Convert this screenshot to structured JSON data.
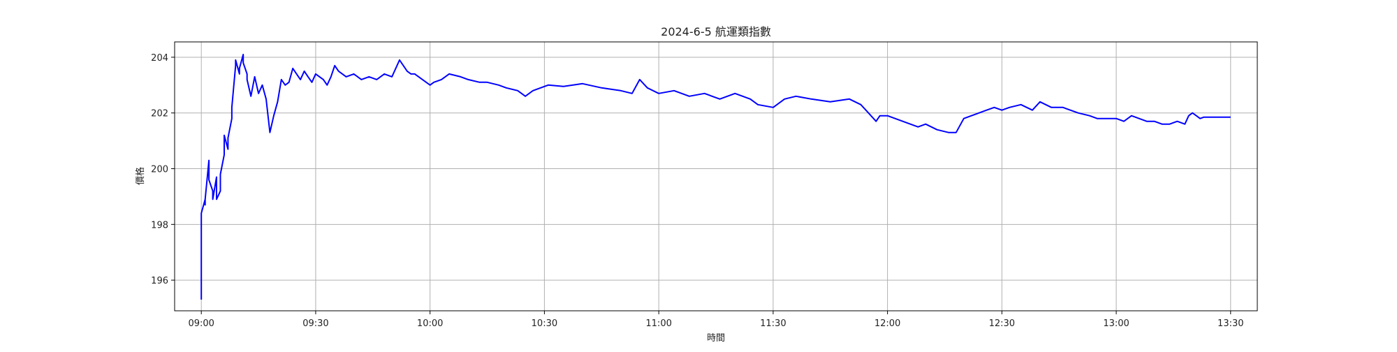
{
  "chart_data": {
    "type": "line",
    "title": "2024-6-5 航運類指數",
    "xlabel": "時間",
    "ylabel": "價格",
    "grid": true,
    "legend": "none",
    "xlim": [
      "08:53",
      "13:37"
    ],
    "ylim": [
      194.9,
      204.55
    ],
    "x_ticks": [
      "09:00",
      "09:30",
      "10:00",
      "10:30",
      "11:00",
      "11:30",
      "12:00",
      "12:30",
      "13:00",
      "13:30"
    ],
    "y_ticks": [
      196,
      198,
      200,
      202,
      204
    ],
    "series": [
      {
        "name": "",
        "color": "#0000ff",
        "x": [
          "09:00",
          "09:00",
          "09:01",
          "09:01",
          "09:01",
          "09:02",
          "09:02",
          "09:03",
          "09:03",
          "09:04",
          "09:04",
          "09:05",
          "09:05",
          "09:06",
          "09:06",
          "09:07",
          "09:07",
          "09:08",
          "09:08",
          "09:09",
          "09:09",
          "09:10",
          "09:10",
          "09:11",
          "09:11",
          "09:12",
          "09:12",
          "09:13",
          "09:14",
          "09:15",
          "09:16",
          "09:17",
          "09:18",
          "09:19",
          "09:20",
          "09:21",
          "09:22",
          "09:23",
          "09:24",
          "09:25",
          "09:26",
          "09:27",
          "09:28",
          "09:29",
          "09:30",
          "09:31",
          "09:32",
          "09:33",
          "09:34",
          "09:35",
          "09:36",
          "09:38",
          "09:40",
          "09:42",
          "09:44",
          "09:46",
          "09:48",
          "09:50",
          "09:52",
          "09:54",
          "09:55",
          "09:56",
          "09:58",
          "10:00",
          "10:01",
          "10:03",
          "10:05",
          "10:08",
          "10:10",
          "10:13",
          "10:15",
          "10:18",
          "10:20",
          "10:23",
          "10:25",
          "10:27",
          "10:29",
          "10:31",
          "10:35",
          "10:40",
          "10:45",
          "10:50",
          "10:53",
          "10:55",
          "10:57",
          "11:00",
          "11:04",
          "11:08",
          "11:12",
          "11:16",
          "11:20",
          "11:22",
          "11:24",
          "11:26",
          "11:30",
          "11:33",
          "11:36",
          "11:40",
          "11:45",
          "11:50",
          "11:53",
          "11:55",
          "11:57",
          "11:58",
          "12:00",
          "12:02",
          "12:04",
          "12:06",
          "12:08",
          "12:10",
          "12:13",
          "12:16",
          "12:18",
          "12:20",
          "12:22",
          "12:24",
          "12:26",
          "12:28",
          "12:30",
          "12:32",
          "12:35",
          "12:38",
          "12:40",
          "12:43",
          "12:46",
          "12:50",
          "12:53",
          "12:55",
          "12:58",
          "13:00",
          "13:02",
          "13:04",
          "13:06",
          "13:08",
          "13:10",
          "13:12",
          "13:14",
          "13:16",
          "13:18",
          "13:19",
          "13:20",
          "13:21",
          "13:22",
          "13:23",
          "13:24",
          "13:25",
          "13:28",
          "13:30"
        ],
        "y": [
          195.3,
          198.4,
          198.9,
          198.7,
          198.9,
          200.3,
          199.6,
          199.2,
          198.9,
          199.7,
          198.9,
          199.2,
          199.8,
          200.5,
          201.2,
          200.7,
          201.1,
          201.8,
          202.2,
          203.7,
          203.9,
          203.4,
          203.6,
          204.1,
          203.8,
          203.4,
          203.2,
          202.6,
          203.3,
          202.7,
          203.0,
          202.5,
          201.3,
          201.9,
          202.4,
          203.2,
          203.0,
          203.1,
          203.6,
          203.4,
          203.2,
          203.5,
          203.3,
          203.1,
          203.4,
          203.3,
          203.2,
          203.0,
          203.3,
          203.7,
          203.5,
          203.3,
          203.4,
          203.2,
          203.3,
          203.2,
          203.4,
          203.3,
          203.9,
          203.5,
          203.4,
          203.4,
          203.2,
          203.0,
          203.1,
          203.2,
          203.4,
          203.3,
          203.2,
          203.1,
          203.1,
          203.0,
          202.9,
          202.8,
          202.6,
          202.8,
          202.9,
          203.0,
          202.95,
          203.05,
          202.9,
          202.8,
          202.7,
          203.2,
          202.9,
          202.7,
          202.8,
          202.6,
          202.7,
          202.5,
          202.7,
          202.6,
          202.5,
          202.3,
          202.2,
          202.5,
          202.6,
          202.5,
          202.4,
          202.5,
          202.3,
          202.0,
          201.7,
          201.9,
          201.9,
          201.8,
          201.7,
          201.6,
          201.5,
          201.6,
          201.4,
          201.3,
          201.3,
          201.8,
          201.9,
          202.0,
          202.1,
          202.2,
          202.1,
          202.2,
          202.3,
          202.1,
          202.4,
          202.2,
          202.2,
          202.0,
          201.9,
          201.8,
          201.8,
          201.8,
          201.7,
          201.9,
          201.8,
          201.7,
          201.7,
          201.6,
          201.6,
          201.7,
          201.6,
          201.9,
          202.0,
          201.9,
          201.8,
          201.85,
          201.85,
          201.85,
          201.85,
          201.85
        ]
      }
    ]
  }
}
